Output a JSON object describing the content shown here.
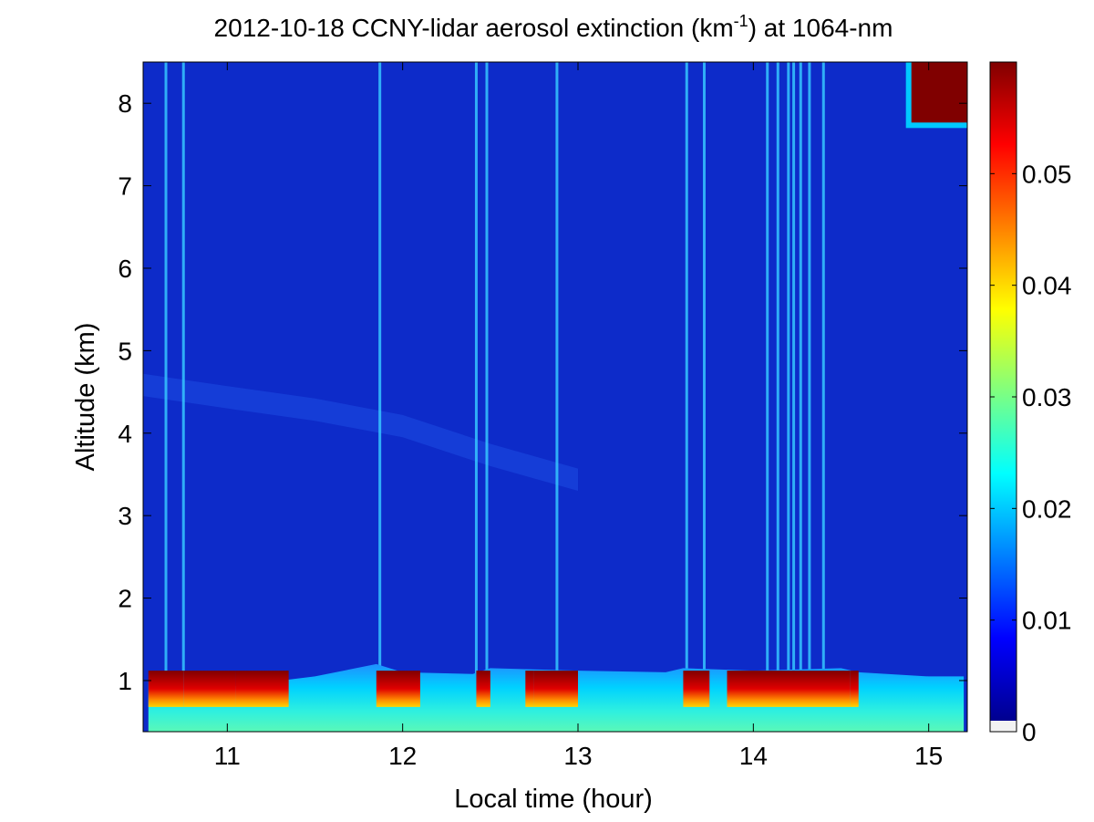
{
  "chart_data": {
    "type": "heatmap",
    "title_parts": {
      "before": "2012-10-18 CCNY-lidar aerosol extinction (km",
      "superscript": "-1",
      "after": ") at 1064-nm"
    },
    "xlabel": "Local time (hour)",
    "ylabel": "Altitude (km)",
    "xlim": [
      10.52,
      15.22
    ],
    "ylim": [
      0.38,
      8.5
    ],
    "x_ticks": [
      11,
      12,
      13,
      14,
      15
    ],
    "y_ticks": [
      1,
      2,
      3,
      4,
      5,
      6,
      7,
      8
    ],
    "colormap": "jet",
    "colorbar": {
      "range": [
        0,
        0.06
      ],
      "ticks": [
        0,
        0.01,
        0.02,
        0.03,
        0.04,
        0.05
      ],
      "tick_labels": [
        "0",
        "0.01",
        "0.02",
        "0.03",
        "0.04",
        "0.05"
      ]
    },
    "boundary_layer_top_km": [
      [
        10.55,
        0.98
      ],
      [
        10.8,
        0.95
      ],
      [
        11.0,
        0.92
      ],
      [
        11.5,
        1.05
      ],
      [
        11.85,
        1.2
      ],
      [
        12.0,
        1.1
      ],
      [
        12.4,
        1.08
      ],
      [
        12.5,
        1.15
      ],
      [
        13.0,
        1.12
      ],
      [
        13.5,
        1.1
      ],
      [
        13.6,
        1.15
      ],
      [
        14.0,
        1.12
      ],
      [
        14.5,
        1.15
      ],
      [
        14.6,
        1.1
      ],
      [
        15.0,
        1.05
      ],
      [
        15.2,
        1.05
      ]
    ],
    "saturated_layer_segments": [
      [
        10.55,
        10.75
      ],
      [
        10.75,
        11.05
      ],
      [
        11.05,
        11.35
      ],
      [
        11.85,
        12.1
      ],
      [
        12.42,
        12.5
      ],
      [
        12.7,
        12.75
      ],
      [
        12.75,
        13.0
      ],
      [
        13.6,
        13.75
      ],
      [
        13.85,
        14.55
      ],
      [
        14.55,
        14.6
      ]
    ],
    "cloud_streak_times": [
      10.65,
      10.75,
      11.87,
      12.42,
      12.48,
      12.88,
      13.62,
      13.72,
      14.08,
      14.14,
      14.2,
      14.23,
      14.27,
      14.32,
      14.4
    ],
    "upper_cloud": {
      "x_range": [
        14.87,
        15.22
      ],
      "y_range": [
        7.7,
        8.5
      ]
    },
    "elevated_aerosol_layer": [
      [
        10.52,
        4.6
      ],
      [
        11.0,
        4.45
      ],
      [
        11.5,
        4.3
      ],
      [
        12.0,
        4.1
      ],
      [
        12.5,
        3.75
      ],
      [
        13.0,
        3.45
      ]
    ]
  }
}
